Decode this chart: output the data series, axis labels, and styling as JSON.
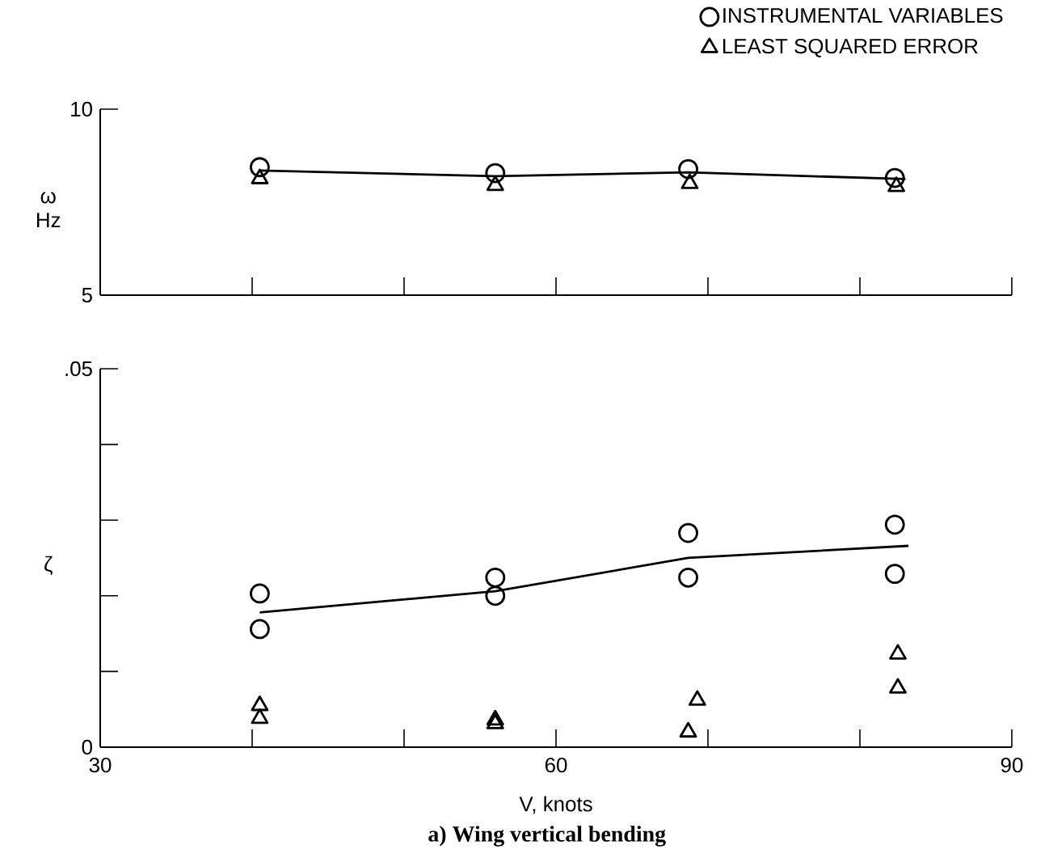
{
  "chart_data": [
    {
      "type": "scatter",
      "ylabel": "ω Hz",
      "xlim": [
        30,
        90
      ],
      "ylim": [
        5,
        10
      ],
      "xticks": [
        {
          "value": 30,
          "label": null
        },
        {
          "value": 40,
          "label": null
        },
        {
          "value": 50,
          "label": null
        },
        {
          "value": 60,
          "label": null
        },
        {
          "value": 70,
          "label": null
        },
        {
          "value": 80,
          "label": null
        },
        {
          "value": 90,
          "label": null
        }
      ],
      "yticks": [
        5,
        10
      ],
      "tick_labels": "y",
      "legend": "top right",
      "series": [
        {
          "name": "INSTRUMENTAL VARIABLES",
          "color": "#000000",
          "marker": "circle",
          "x": [
            40.5,
            56,
            68.7,
            82.3
          ],
          "values": [
            8.44,
            8.28,
            8.39,
            8.15
          ]
        },
        {
          "name": "LEAST SQUARED ERROR",
          "color": "#000000",
          "marker": "triangle",
          "x": [
            40.5,
            56,
            68.8,
            82.4
          ],
          "values": [
            8.13,
            7.95,
            8.0,
            7.92
          ]
        },
        {
          "type": "line",
          "color": "#000000",
          "marker": "none",
          "x": [
            40.5,
            56,
            68.7,
            83
          ],
          "values": [
            8.35,
            8.2,
            8.3,
            8.12
          ]
        }
      ]
    },
    {
      "type": "scatter",
      "xlabel": "V, knots",
      "ylabel": "ζ",
      "xlim": [
        30,
        90
      ],
      "ylim": [
        0,
        0.05
      ],
      "xticks": [
        30,
        {
          "value": 40,
          "label": null
        },
        {
          "value": 50,
          "label": null
        },
        60,
        {
          "value": 70,
          "label": null
        },
        {
          "value": 80,
          "label": null
        },
        90
      ],
      "yticks": [
        0,
        {
          "value": 0.01,
          "label": null
        },
        {
          "value": 0.02,
          "label": null
        },
        {
          "value": 0.03,
          "label": null
        },
        {
          "value": 0.04,
          "label": null
        },
        {
          "value": 0.05,
          "label": ".05"
        }
      ],
      "annotations": [
        "a) Wing vertical bending"
      ],
      "series": [
        {
          "color": "#000000",
          "marker": "circle",
          "x": [
            40.5,
            40.5,
            56,
            56,
            68.7,
            68.7,
            82.3,
            82.3
          ],
          "values": [
            0.0203,
            0.0156,
            0.0224,
            0.02,
            0.0283,
            0.0224,
            0.0294,
            0.0229
          ]
        },
        {
          "color": "#000000",
          "marker": "triangle",
          "x": [
            40.5,
            40.5,
            56,
            56,
            69.3,
            68.7,
            82.5,
            82.5
          ],
          "values": [
            0.0055,
            0.0038,
            0.0036,
            0.0031,
            0.0062,
            0.002,
            0.0123,
            0.0078
          ]
        },
        {
          "type": "line",
          "color": "#000000",
          "marker": "none",
          "x": [
            40.5,
            56,
            68.7,
            83.2
          ],
          "values": [
            0.0178,
            0.0206,
            0.025,
            0.0266
          ]
        }
      ]
    }
  ]
}
